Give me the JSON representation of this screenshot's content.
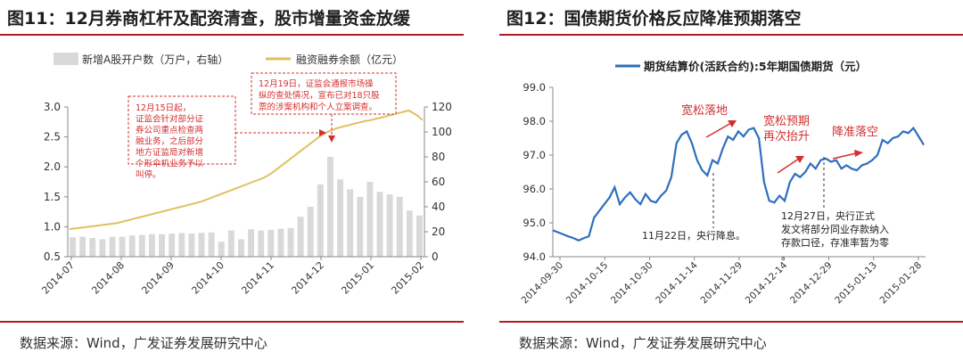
{
  "figures": [
    {
      "title": "图11：12月券商杠杆及配资清查，股市增量资金放缓",
      "source": "数据来源：Wind，广发证券发展研究中心"
    },
    {
      "title": "图12：国债期货价格反应降准预期落空",
      "source": "数据来源：Wind，广发证券发展研究中心"
    }
  ],
  "colors": {
    "rule": "#b11b21",
    "bars": "#d9d9d9",
    "margin_line": "#e0c15e",
    "futures_line": "#2e6fbd",
    "annotation": "#d32f2f",
    "axis": "#888888"
  },
  "chart_data": [
    {
      "type": "bar",
      "title": "",
      "legend": [
        "新增A股开户数（万户，右轴）",
        "融资融券余额（亿元）"
      ],
      "legend_position": "top",
      "x_ticks": [
        "2014-07",
        "2014-08",
        "2014-09",
        "2014-10",
        "2014-11",
        "2014-12",
        "2015-01",
        "2015-02"
      ],
      "y_left": {
        "ticks": [
          "0.5",
          "1.0",
          "1.5",
          "2.0",
          "2.5",
          "3.0"
        ],
        "range": [
          0.5,
          3.0
        ]
      },
      "y_right": {
        "ticks": [
          "0",
          "20",
          "40",
          "60",
          "80",
          "100",
          "120"
        ],
        "range": [
          0,
          120
        ]
      },
      "series": [
        {
          "name": "新增A股开户数（万户，右轴）",
          "type": "bar",
          "axis": "right",
          "values": [
            15.5,
            16,
            15,
            14,
            16,
            16,
            17,
            17.5,
            18,
            18,
            18.5,
            19,
            18.5,
            19,
            19.5,
            12,
            21,
            14,
            22,
            21,
            21.5,
            22.5,
            23,
            32,
            40,
            58,
            80,
            62,
            54,
            48,
            60,
            52,
            50,
            48,
            37,
            33
          ]
        },
        {
          "name": "融资融券余额（亿元）",
          "type": "line",
          "axis": "left",
          "values": [
            0.96,
            0.97,
            0.98,
            0.99,
            1.0,
            1.01,
            1.02,
            1.03,
            1.04,
            1.05,
            1.06,
            1.08,
            1.1,
            1.12,
            1.14,
            1.16,
            1.18,
            1.2,
            1.22,
            1.24,
            1.26,
            1.28,
            1.3,
            1.32,
            1.34,
            1.36,
            1.38,
            1.4,
            1.42,
            1.45,
            1.48,
            1.51,
            1.54,
            1.57,
            1.6,
            1.63,
            1.66,
            1.69,
            1.72,
            1.75,
            1.78,
            1.81,
            1.85,
            1.9,
            1.96,
            2.02,
            2.08,
            2.14,
            2.2,
            2.26,
            2.32,
            2.38,
            2.44,
            2.5,
            2.55,
            2.59,
            2.62,
            2.65,
            2.67,
            2.69,
            2.71,
            2.73,
            2.75,
            2.77,
            2.78,
            2.8,
            2.82,
            2.84,
            2.86,
            2.88,
            2.9,
            2.92,
            2.94,
            2.9,
            2.85,
            2.78
          ]
        }
      ],
      "annotations": [
        "12月15日起，证监会针对部分证券公司重点检查两融业务，之后部分地方证监局对新增个形伞机业务予以叫停。",
        "12月19日，证监会通报市场操纵的查处情况，宣布已对18只股票的涉案机构和个人立案调查。"
      ]
    },
    {
      "type": "line",
      "title": "",
      "legend": [
        "期货结算价(活跃合约):5年期国债期货（元）"
      ],
      "legend_position": "top",
      "x_ticks": [
        "2014-09-30",
        "2014-10-15",
        "2014-10-30",
        "2014-11-14",
        "2014-11-29",
        "2014-12-14",
        "2014-12-29",
        "2015-01-13",
        "2015-01-28"
      ],
      "ylim": [
        94.0,
        99.0
      ],
      "y_ticks": [
        "94.0",
        "95.0",
        "96.0",
        "97.0",
        "98.0",
        "99.0"
      ],
      "series": [
        {
          "name": "期货结算价(活跃合约):5年期国债期货（元）",
          "values": [
            94.78,
            94.72,
            94.66,
            94.6,
            94.55,
            94.48,
            94.55,
            94.6,
            95.15,
            95.35,
            95.55,
            95.75,
            96.05,
            95.55,
            95.75,
            95.9,
            95.7,
            95.55,
            95.85,
            95.65,
            95.6,
            95.8,
            95.95,
            96.35,
            97.35,
            97.6,
            97.7,
            97.35,
            96.85,
            96.55,
            96.4,
            96.85,
            96.75,
            97.2,
            97.55,
            97.45,
            97.7,
            97.55,
            97.75,
            97.8,
            97.5,
            96.2,
            95.65,
            95.6,
            95.8,
            95.65,
            96.2,
            96.45,
            96.35,
            96.5,
            96.75,
            96.6,
            96.85,
            96.9,
            96.8,
            96.85,
            96.6,
            96.7,
            96.6,
            96.55,
            96.7,
            96.75,
            96.85,
            97.0,
            97.45,
            97.35,
            97.5,
            97.55,
            97.7,
            97.65,
            97.8,
            97.55,
            97.3
          ]
        }
      ],
      "annotations": [
        "宽松落地",
        "宽松预期再次抬升",
        "降准落空",
        "11月22日，央行降息。",
        "12月27日，央行正式发文将部分同业存款纳入存款口径，存准率暂为零。"
      ]
    }
  ]
}
